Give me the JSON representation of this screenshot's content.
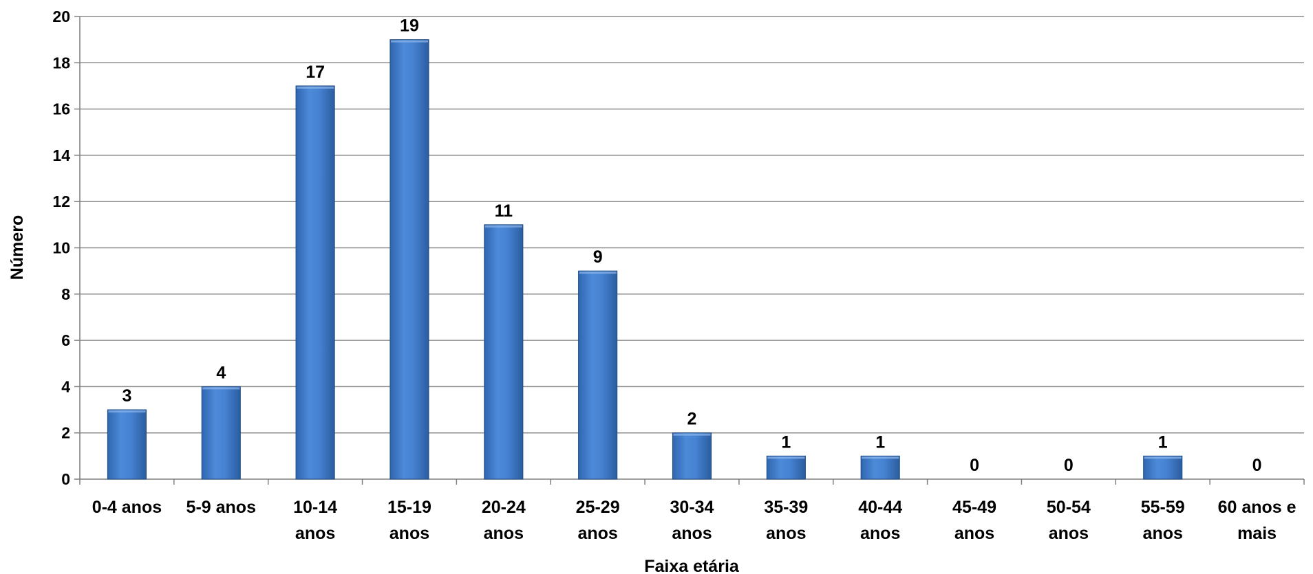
{
  "chart_data": {
    "type": "bar",
    "categories": [
      [
        "0-4 anos"
      ],
      [
        "5-9 anos"
      ],
      [
        "10-14",
        "anos"
      ],
      [
        "15-19",
        "anos"
      ],
      [
        "20-24",
        "anos"
      ],
      [
        "25-29",
        "anos"
      ],
      [
        "30-34",
        "anos"
      ],
      [
        "35-39",
        "anos"
      ],
      [
        "40-44",
        "anos"
      ],
      [
        "45-49",
        "anos"
      ],
      [
        "50-54",
        "anos"
      ],
      [
        "55-59",
        "anos"
      ],
      [
        "60 anos e",
        "mais"
      ]
    ],
    "values": [
      3,
      4,
      17,
      19,
      11,
      9,
      2,
      1,
      1,
      0,
      0,
      1,
      0
    ],
    "xlabel": "Faixa etária",
    "ylabel": "Número",
    "ylim": [
      0,
      20
    ],
    "yticks": [
      0,
      2,
      4,
      6,
      8,
      10,
      12,
      14,
      16,
      18,
      20
    ],
    "grid": true,
    "data_labels": true,
    "colors": {
      "bar_light": "#5b95e0",
      "bar_mid": "#3d7ad0",
      "bar_dark": "#2c5f9e",
      "bar_edge": "#1f4a80",
      "grid": "#8c8c8c",
      "axis": "#7f7f7f"
    }
  }
}
